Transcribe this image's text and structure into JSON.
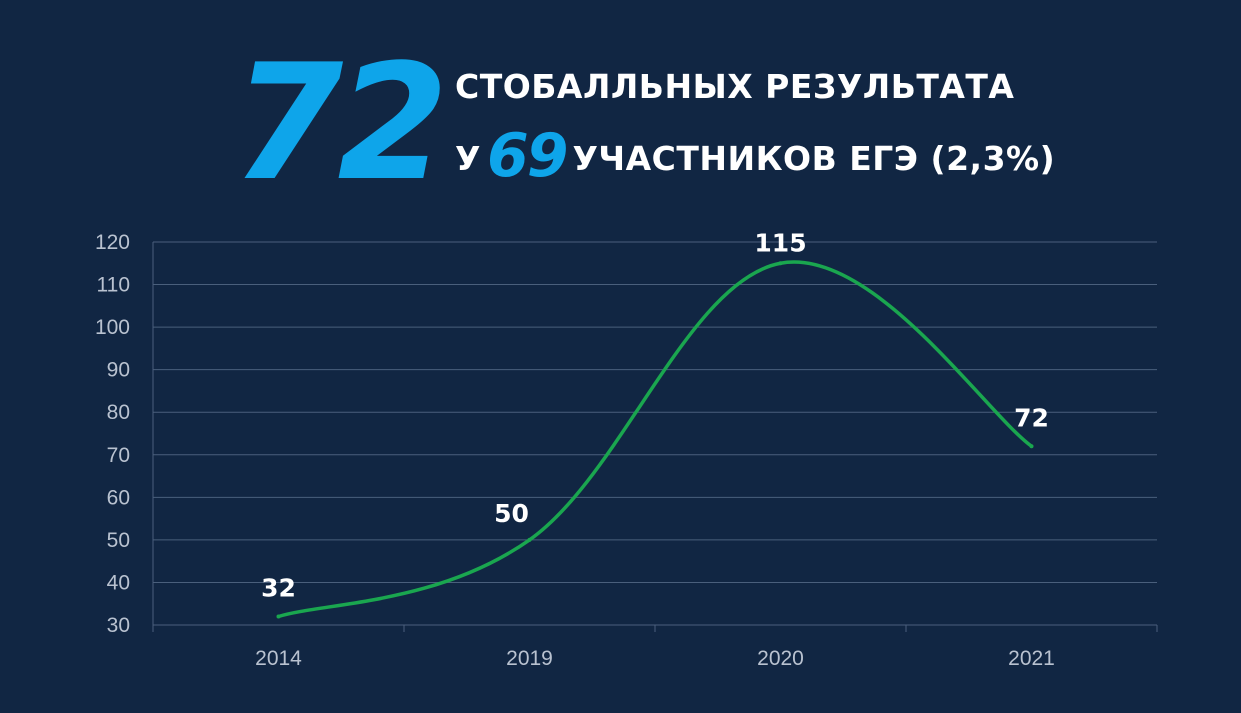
{
  "header": {
    "big_number": "72",
    "line1": "СТОБАЛЛЬНЫХ РЕЗУЛЬТАТА",
    "line2_prefix": "У",
    "line2_highlight": "69",
    "line2_suffix": "УЧАСТНИКОВ ЕГЭ (2,3%)"
  },
  "colors": {
    "background": "#112643",
    "accent": "#0ea5ea",
    "line": "#1aa64f",
    "grid": "#4a5f7c",
    "text": "#ffffff"
  },
  "chart_data": {
    "type": "line",
    "categories": [
      "2014",
      "2019",
      "2020",
      "2021"
    ],
    "series": [
      {
        "values": [
          32,
          50,
          115,
          72
        ]
      }
    ],
    "data_labels": [
      "32",
      "50",
      "115",
      "72"
    ],
    "ylim": [
      30,
      120
    ],
    "yticks": [
      30,
      40,
      50,
      60,
      70,
      80,
      90,
      100,
      110,
      120
    ],
    "grid": true,
    "smooth": true
  }
}
